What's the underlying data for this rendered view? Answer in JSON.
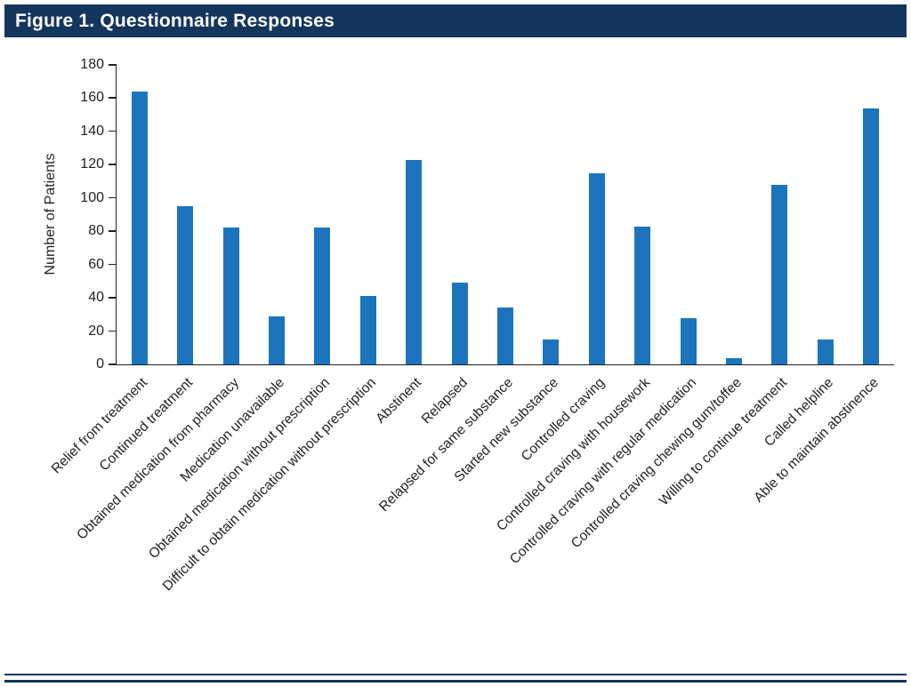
{
  "header": {
    "title": "Figure 1. Questionnaire Responses"
  },
  "colors": {
    "header_bg": "#14365C",
    "bar": "#1C75BC",
    "axis": "#231F20",
    "rule": "#14365C"
  },
  "chart_data": {
    "type": "bar",
    "title": "Figure 1. Questionnaire Responses",
    "xlabel": "",
    "ylabel": "Number of Patients",
    "ylim": [
      0,
      180
    ],
    "ytick_step": 20,
    "grid": false,
    "legend": "none",
    "categories": [
      "Relief from treatment",
      "Continued treatment",
      "Obtained medication from pharmacy",
      "Medication unavailable",
      "Obtained medication without prescription",
      "Difficult to obtain medication without prescription",
      "Abstinent",
      "Relapsed",
      "Relapsed for same substance",
      "Started new substance",
      "Controlled craving",
      "Controlled craving with housework",
      "Controlled craving with regular medication",
      "Controlled craving chewing gum/toffee",
      "Willing to continue treatment",
      "Called helpline",
      "Able to maintain abstinence"
    ],
    "values": [
      164,
      95,
      82,
      29,
      82,
      41,
      123,
      49,
      34,
      15,
      115,
      83,
      28,
      4,
      108,
      15,
      154
    ]
  }
}
